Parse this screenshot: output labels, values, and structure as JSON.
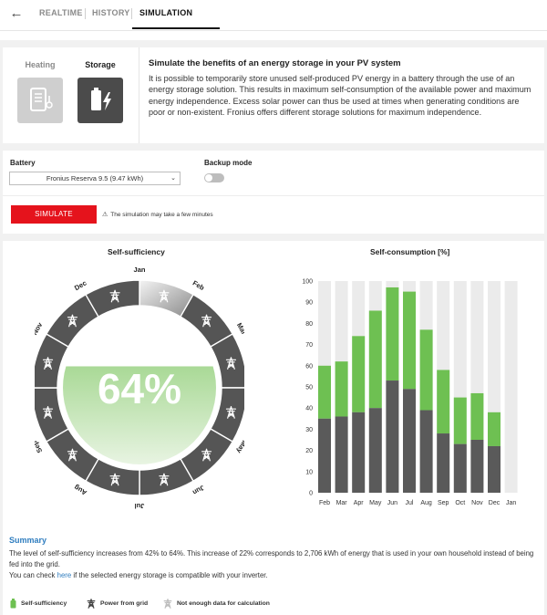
{
  "nav": {
    "back_icon": "arrow-left-icon",
    "tabs": [
      {
        "label": "REALTIME",
        "active": false
      },
      {
        "label": "HISTORY",
        "active": false
      },
      {
        "label": "SIMULATION",
        "active": true
      }
    ]
  },
  "modes": {
    "heating": {
      "label": "Heating",
      "icon": "water-heater-icon",
      "active": false
    },
    "storage": {
      "label": "Storage",
      "icon": "battery-charging-icon",
      "active": true
    }
  },
  "intro": {
    "title": "Simulate the benefits of an energy storage in your PV system",
    "description": "It is possible to temporarily store unused self-produced PV energy in a battery through the use of an energy storage solution. This results in maximum self-consumption of the available power and maximum energy independence. Excess solar power can thus be used at times when generating conditions are poor or non-existent. Fronius offers different storage solutions for maximum independence."
  },
  "settings": {
    "battery_label": "Battery",
    "battery_value": "Fronius Reserva 9.5 (9.47 kWh)",
    "backup_label": "Backup mode",
    "backup_enabled": false
  },
  "actions": {
    "simulate_label": "SIMULATE",
    "simulate_hint": "The simulation may take a few minutes"
  },
  "self_sufficiency": {
    "title": "Self-sufficiency",
    "value_label": "64%",
    "fill_fraction": 0.64
  },
  "self_consumption": {
    "title": "Self-consumption [%]"
  },
  "chart_data": [
    {
      "type": "radial",
      "title": "Self-sufficiency",
      "center_value": 64,
      "center_label": "64%",
      "months": [
        "Jan",
        "Feb",
        "Mar",
        "Apr",
        "May",
        "Jun",
        "Jul",
        "Aug",
        "Sep",
        "Oct",
        "Nov",
        "Dec"
      ],
      "month_state": [
        "no-data",
        "grid",
        "grid",
        "grid",
        "grid",
        "grid",
        "grid",
        "grid",
        "grid",
        "grid",
        "grid",
        "grid"
      ]
    },
    {
      "type": "bar",
      "title": "Self-consumption [%]",
      "categories": [
        "Feb",
        "Mar",
        "Apr",
        "May",
        "Jun",
        "Jul",
        "Aug",
        "Sep",
        "Oct",
        "Nov",
        "Dec",
        "Jan"
      ],
      "ylim": [
        0,
        100
      ],
      "yticks": [
        0,
        10,
        20,
        30,
        40,
        50,
        60,
        70,
        80,
        90,
        100
      ],
      "series": [
        {
          "color": "#5a5a5a",
          "values": [
            35,
            36,
            38,
            40,
            53,
            49,
            39,
            28,
            23,
            25,
            22,
            0
          ]
        },
        {
          "color": "#6ec052",
          "values": [
            25,
            26,
            36,
            46,
            44,
            46,
            38,
            30,
            22,
            22,
            16,
            0
          ]
        }
      ],
      "background_color": "#ebebeb"
    }
  ],
  "summary": {
    "title": "Summary",
    "line1": "The level of self-sufficiency increases from 42% to 64%. This increase of 22% corresponds to 2,706 kWh of energy that is used in your own household instead of being fed into the grid.",
    "line2_before": "You can check ",
    "line2_link": "here",
    "line2_after": " if the selected energy storage is compatible with your inverter."
  },
  "legend": {
    "items": [
      {
        "label": "Self-sufficiency",
        "icon": "battery-icon",
        "color": "#6ec052"
      },
      {
        "label": "Power from grid",
        "icon": "power-pylon-icon",
        "color": "#444444"
      },
      {
        "label": "Not enough data for calculation",
        "icon": "power-pylon-icon",
        "color": "#bdbdbd"
      }
    ]
  }
}
